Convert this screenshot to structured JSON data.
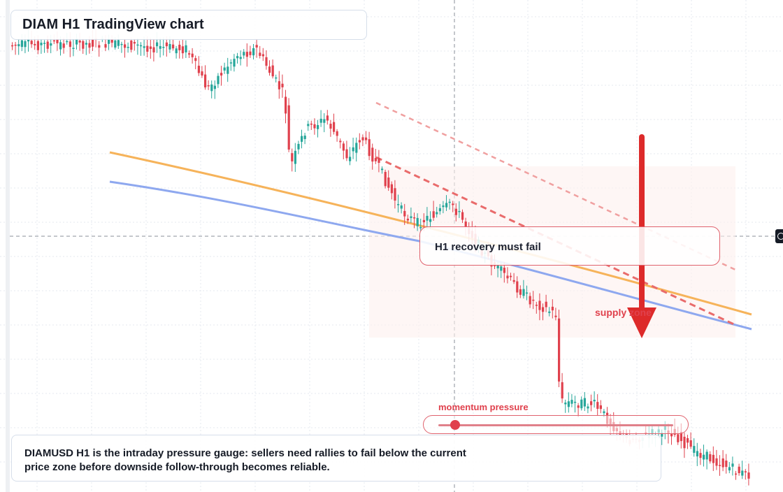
{
  "title": "DIAM H1 TradingView chart",
  "note": "H1 recovery must fail",
  "supply_label": "supply zone",
  "momentum": {
    "label": "momentum pressure",
    "level": 0.07
  },
  "caption": {
    "line1": "DIAMUSD H1 is the intraday pressure gauge: sellers need rallies to fail below the current",
    "line2": "price zone before downside follow-through becomes reliable."
  },
  "colors": {
    "up": "#26a69a",
    "down": "#e0414d",
    "grid": "#e6e9ef",
    "orange_line": "#f6b35a",
    "blue_line": "#8ea8ef",
    "trendline": "#e96b6b",
    "arrow": "#dd2a2a",
    "zone": "#fdf0ee"
  },
  "chart_data": {
    "type": "candlestick",
    "timeframe": "H1",
    "symbol": "DIAMUSD",
    "title": "DIAM H1 TradingView chart",
    "trend": "down",
    "annotations": [
      "H1 recovery must fail",
      "supply zone",
      "momentum pressure"
    ],
    "pressure_arrow": "down",
    "grid": true,
    "legend": "none"
  }
}
